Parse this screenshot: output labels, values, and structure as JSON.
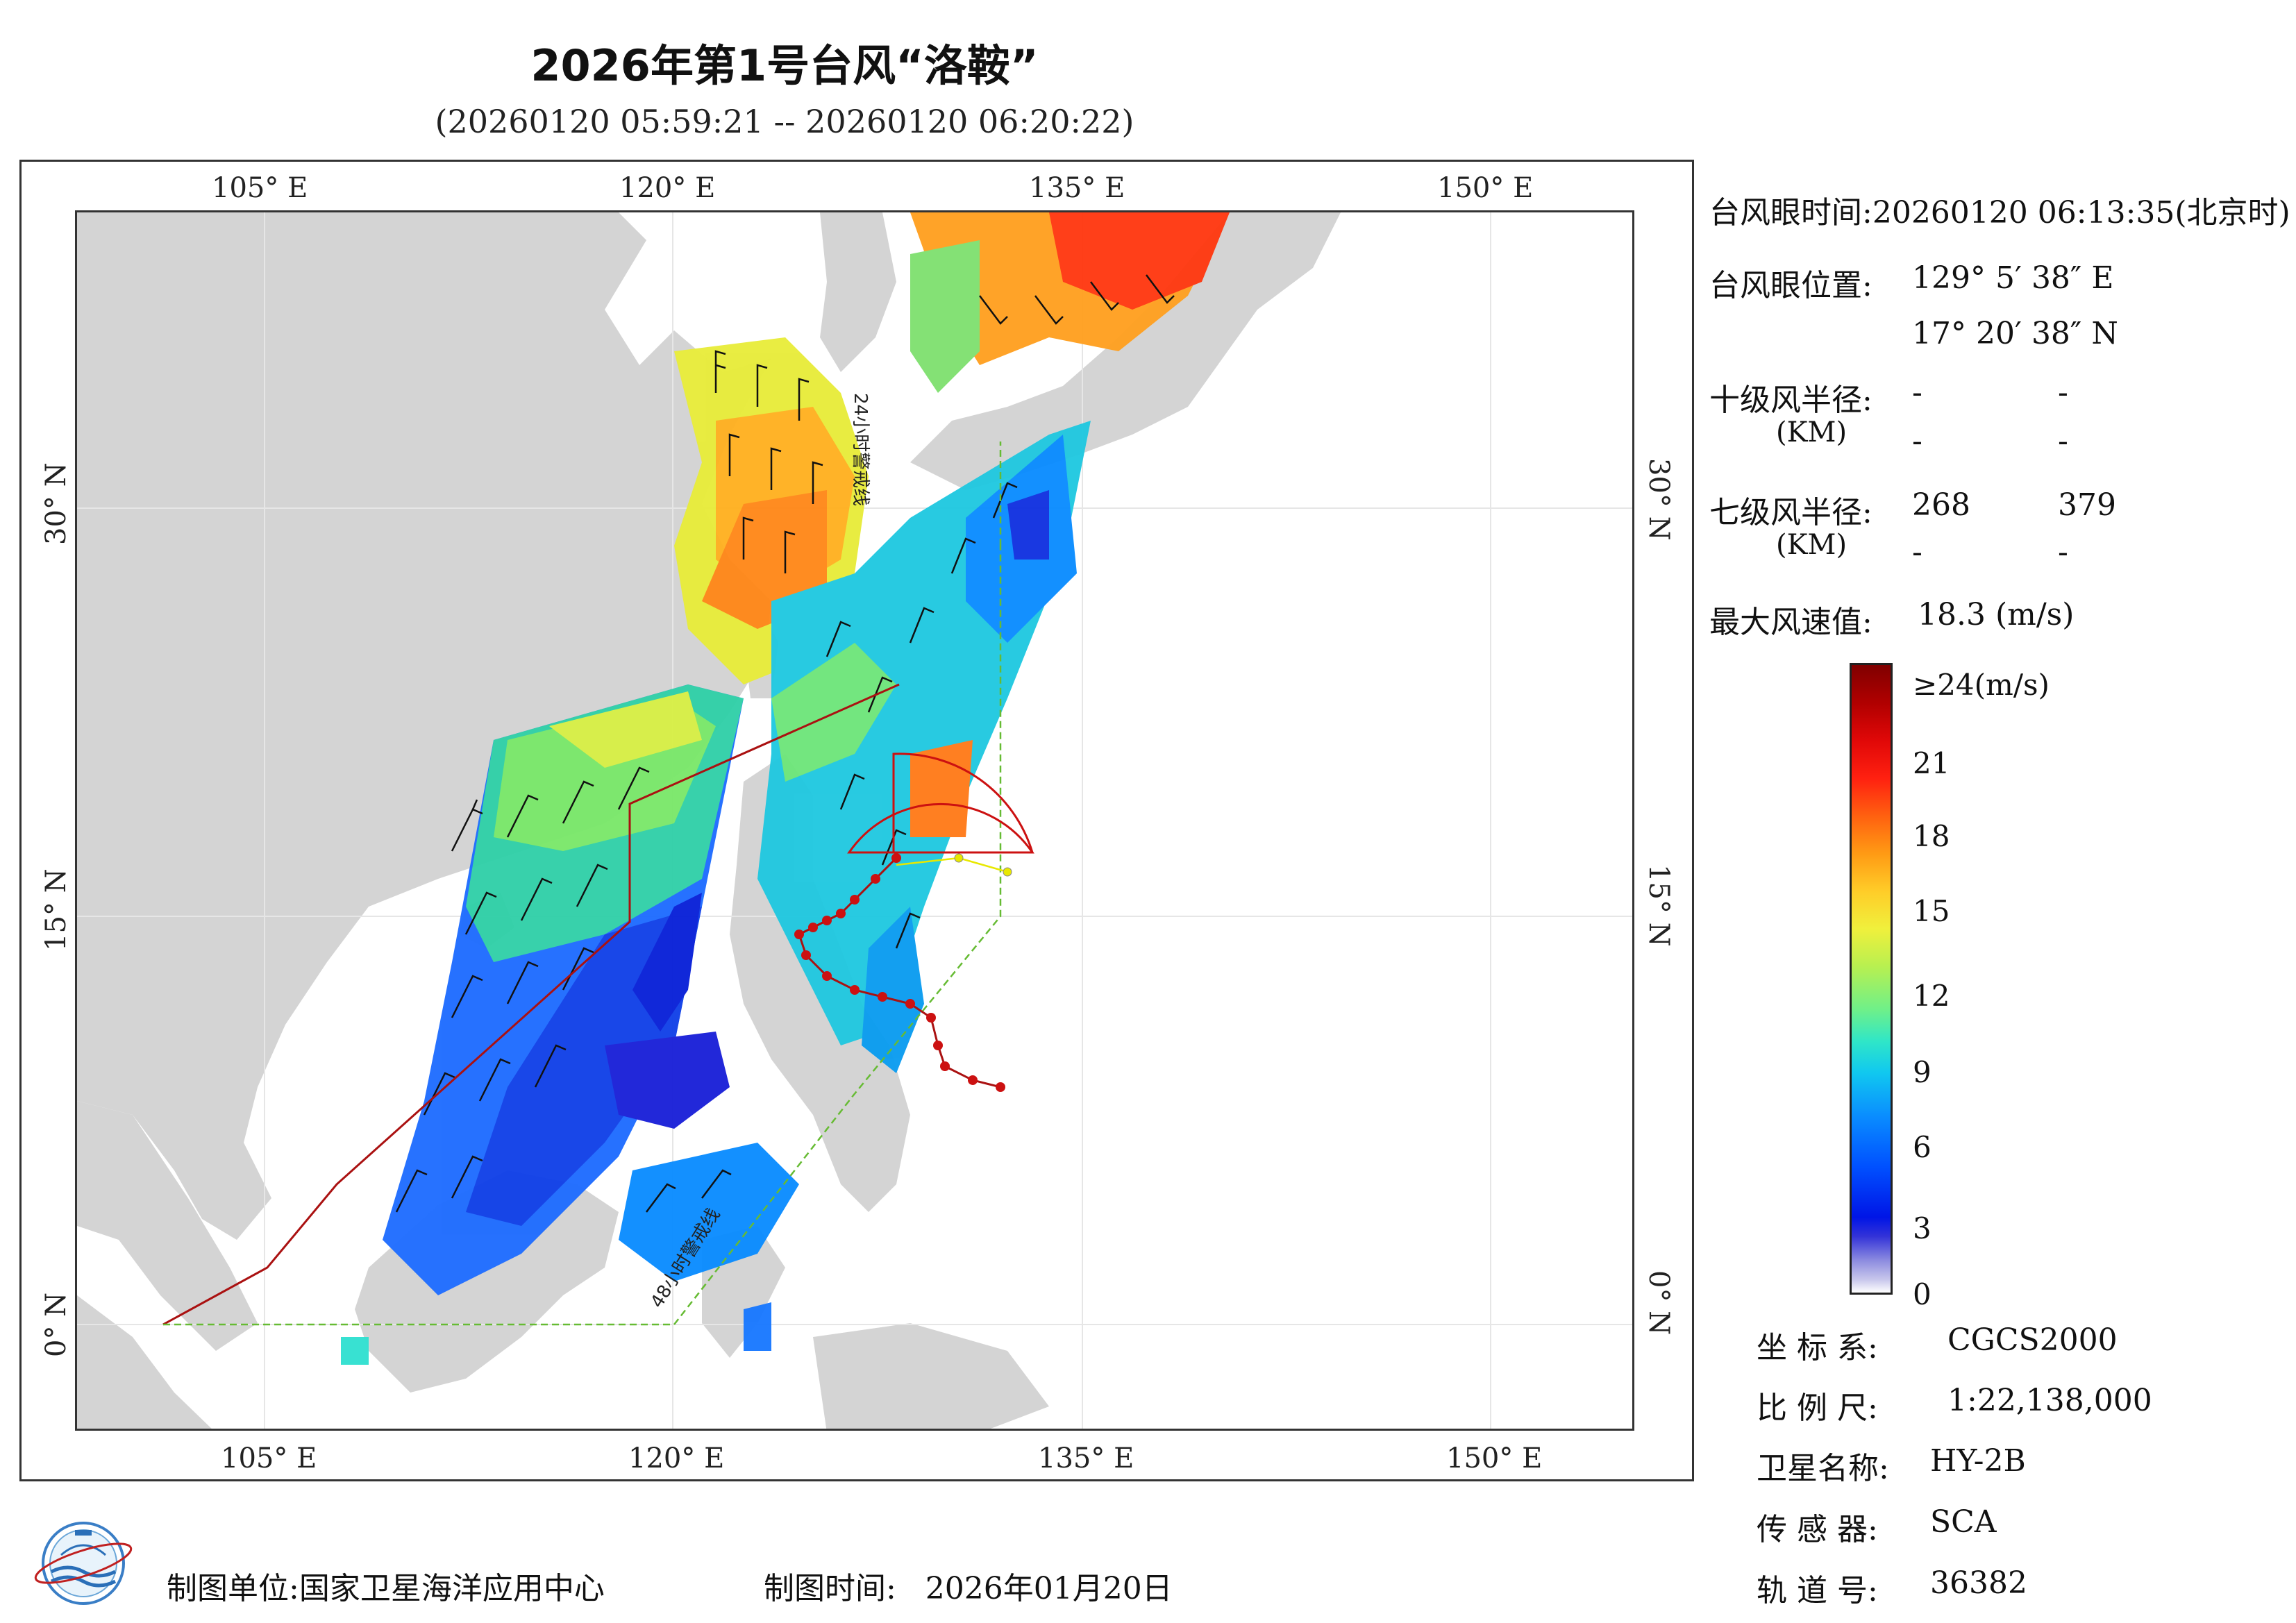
{
  "title": "2026年第1号台风“洛鞍”",
  "subtitle": "(20260120 05:59:21 -- 20260120 06:20:22)",
  "map": {
    "lon_ticks": [
      "105° E",
      "120° E",
      "135° E",
      "150° E"
    ],
    "lat_ticks": [
      "30° N",
      "15° N",
      "0° N"
    ],
    "warning_line_24h": "24小时警戒线",
    "warning_line_48h": "48小时警戒线",
    "colors": {
      "land": "#d4d4d4",
      "ocean": "#ffffff",
      "track": "#cc1111",
      "warning_24h": "#aa1111",
      "warning_48h": "#66bb33",
      "forecast": "#e8e800"
    }
  },
  "info": {
    "eye_time_label": "台风眼时间:",
    "eye_time_value": "20260120 06:13:35(北京时)",
    "eye_pos_label": "台风眼位置:",
    "eye_lon": "129° 5′ 38″ E",
    "eye_lat": "17° 20′ 38″ N",
    "r10_label": "十级风半径:",
    "r10_unit": "(KM)",
    "r10_values": [
      "-",
      "-",
      "-",
      "-"
    ],
    "r7_label": "七级风半径:",
    "r7_unit": "(KM)",
    "r7_values": [
      "268",
      "379",
      "-",
      "-"
    ],
    "max_wind_label": "最大风速值:",
    "max_wind_value": "18.3 (m/s)"
  },
  "colorbar": {
    "labels": [
      "≥24(m/s)",
      "21",
      "18",
      "15",
      "12",
      "9",
      "6",
      "3",
      "0"
    ]
  },
  "meta": {
    "crs_label": "坐 标 系:",
    "crs_value": "CGCS2000",
    "scale_label": "比 例 尺:",
    "scale_value": "1:22,138,000",
    "satellite_label": "卫星名称:",
    "satellite_value": "HY-2B",
    "sensor_label": "传 感 器:",
    "sensor_value": "SCA",
    "orbit_label": "轨 道 号:",
    "orbit_value": "36382"
  },
  "footer": {
    "unit_label": "制图单位:",
    "unit_value": "国家卫星海洋应用中心",
    "time_label": "制图时间:",
    "time_value": "2026年01月20日"
  }
}
